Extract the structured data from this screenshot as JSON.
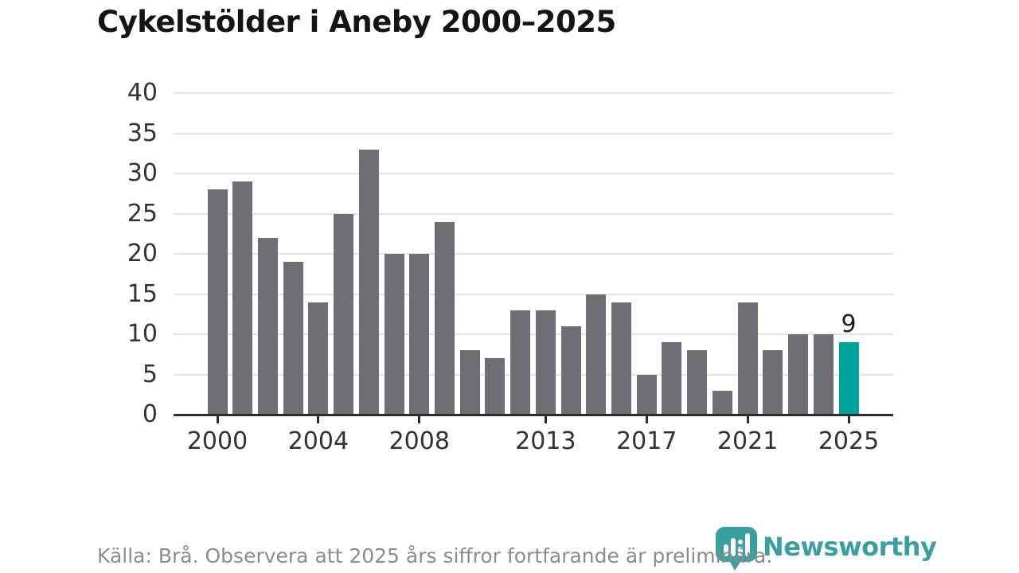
{
  "header": {
    "title": "Cykelstölder i Aneby 2000–2025"
  },
  "chart_data": {
    "type": "bar",
    "title": "Cykelstölder i Aneby 2000–2025",
    "categories": [
      2000,
      2001,
      2002,
      2003,
      2004,
      2005,
      2006,
      2007,
      2008,
      2009,
      2010,
      2011,
      2012,
      2013,
      2014,
      2015,
      2016,
      2017,
      2018,
      2019,
      2020,
      2021,
      2022,
      2023,
      2024,
      2025
    ],
    "values": [
      28,
      29,
      22,
      19,
      14,
      25,
      33,
      20,
      20,
      24,
      8,
      7,
      13,
      13,
      11,
      15,
      14,
      5,
      9,
      8,
      3,
      14,
      8,
      10,
      10,
      9
    ],
    "highlight": {
      "year": 2025,
      "value": 9,
      "label": "9"
    },
    "xlabel": "",
    "ylabel": "",
    "ylim": [
      0,
      40
    ],
    "y_ticks": [
      0,
      5,
      10,
      15,
      20,
      25,
      30,
      35,
      40
    ],
    "x_ticks": [
      2000,
      2004,
      2008,
      2013,
      2017,
      2021,
      2025
    ],
    "grid": true,
    "legend": "none",
    "colors": {
      "bar": "#6e6e75",
      "highlight": "#00a49d",
      "axis": "#2d2d2d",
      "gridline": "#e3e3e3",
      "tick_label": "#333333",
      "value_label": "#1f1f1f"
    }
  },
  "footer": {
    "source": "Källa: Brå. Observera att 2025 års siffror fortfarande är preliminära.",
    "logo_text": "Newsworthy",
    "logo_color": "#3a9fa0"
  }
}
